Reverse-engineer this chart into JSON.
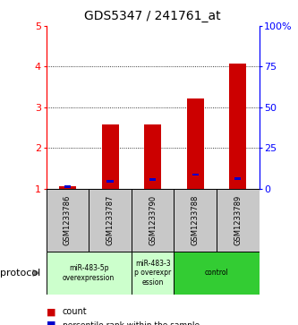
{
  "title": "GDS5347 / 241761_at",
  "samples": [
    "GSM1233786",
    "GSM1233787",
    "GSM1233790",
    "GSM1233788",
    "GSM1233789"
  ],
  "count_values": [
    1.05,
    2.58,
    2.58,
    3.22,
    4.08
  ],
  "percentile_values": [
    1.0,
    4.5,
    5.5,
    8.5,
    6.0
  ],
  "ylim_left": [
    1,
    5
  ],
  "ylim_right": [
    0,
    100
  ],
  "yticks_left": [
    1,
    2,
    3,
    4,
    5
  ],
  "yticks_right": [
    0,
    25,
    50,
    75,
    100
  ],
  "ytick_labels_right": [
    "0",
    "25",
    "50",
    "75",
    "100%"
  ],
  "bar_color_red": "#CC0000",
  "bar_color_blue": "#0000CC",
  "bar_width": 0.4,
  "blue_bar_width": 0.15,
  "blue_bar_height": 0.06,
  "sample_box_color": "#C8C8C8",
  "group_light_green": "#CCFFCC",
  "group_dark_green": "#33CC33",
  "protocol_label": "protocol",
  "group_spans": [
    [
      0,
      2,
      "miR-483-5p\noverexpression",
      "#CCFFCC"
    ],
    [
      2,
      3,
      "miR-483-3\np overexpr\nession",
      "#CCFFCC"
    ],
    [
      3,
      5,
      "control",
      "#33CC33"
    ]
  ]
}
